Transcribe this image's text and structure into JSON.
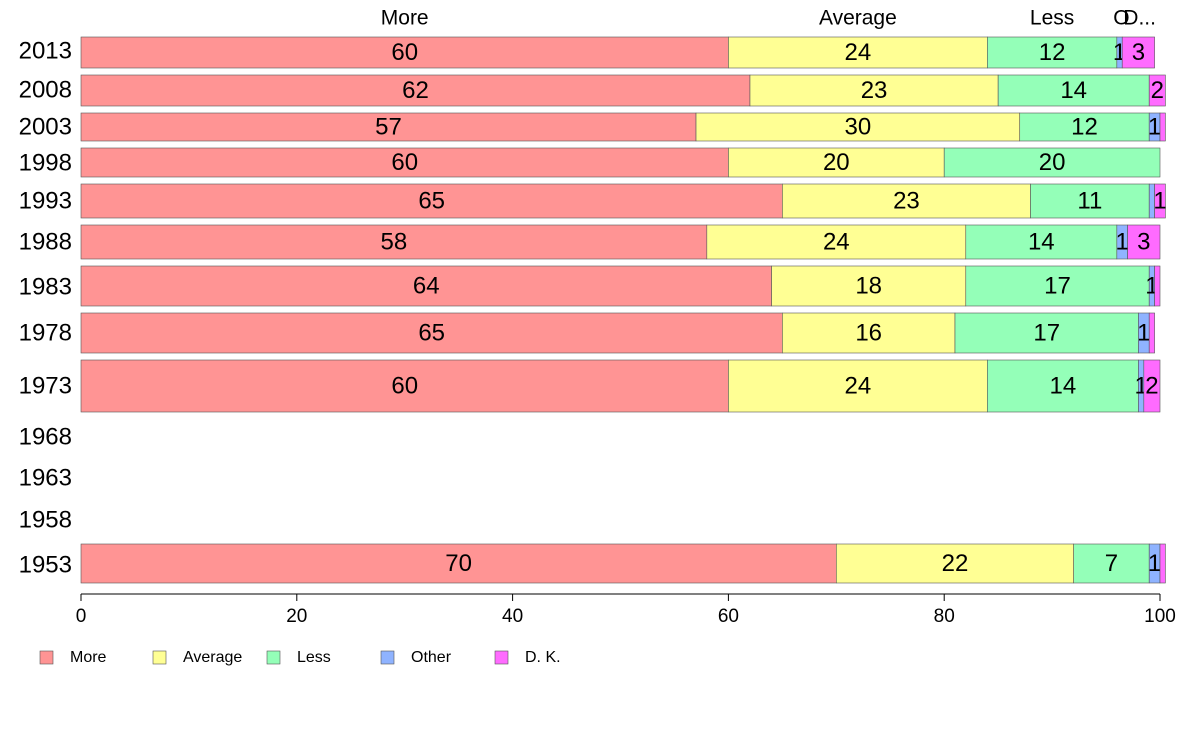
{
  "chart_data": {
    "type": "bar",
    "orientation": "horizontal",
    "stacked": true,
    "categories": [
      "2013",
      "2008",
      "2003",
      "1998",
      "1993",
      "1988",
      "1983",
      "1978",
      "1973",
      "1968",
      "1963",
      "1958",
      "1953"
    ],
    "series": [
      {
        "name": "More",
        "color": "#ff9494",
        "values": [
          60,
          62,
          57,
          60,
          65,
          58,
          64,
          65,
          60,
          null,
          null,
          null,
          70
        ]
      },
      {
        "name": "Average",
        "color": "#ffff94",
        "values": [
          24,
          23,
          30,
          20,
          23,
          24,
          18,
          16,
          24,
          null,
          null,
          null,
          22
        ]
      },
      {
        "name": "Less",
        "color": "#94ffb8",
        "values": [
          12,
          14,
          12,
          20,
          11,
          14,
          17,
          17,
          14,
          null,
          null,
          null,
          7
        ]
      },
      {
        "name": "Other",
        "color": "#8fb3ff",
        "values": [
          0.5,
          0,
          1,
          0,
          0.5,
          1,
          0.5,
          1,
          0.5,
          null,
          null,
          null,
          1
        ]
      },
      {
        "name": "D. K.",
        "color": "#ff6bff",
        "values": [
          3,
          1.5,
          0.5,
          0,
          1,
          3,
          0.5,
          0.5,
          1.5,
          null,
          null,
          null,
          0.5
        ]
      }
    ],
    "top_labels": [
      {
        "series": "More",
        "text": "More"
      },
      {
        "series": "Average",
        "text": "Average"
      },
      {
        "series": "Less",
        "text": "Less"
      },
      {
        "series": "Other",
        "text": "O"
      },
      {
        "series": "D. K.",
        "text": "D..."
      }
    ],
    "segment_labels": [
      [
        "60",
        "24",
        "12",
        "1",
        "3"
      ],
      [
        "62",
        "23",
        "14",
        "",
        "2"
      ],
      [
        "57",
        "30",
        "12",
        "1",
        ""
      ],
      [
        "60",
        "20",
        "20",
        "",
        ""
      ],
      [
        "65",
        "23",
        "11",
        "",
        "1"
      ],
      [
        "58",
        "24",
        "14",
        "1",
        "3"
      ],
      [
        "64",
        "18",
        "17",
        "1",
        ""
      ],
      [
        "65",
        "16",
        "17",
        "1",
        ""
      ],
      [
        "60",
        "24",
        "14",
        "1",
        "2"
      ],
      [
        "",
        "",
        "",
        "",
        ""
      ],
      [
        "",
        "",
        "",
        "",
        ""
      ],
      [
        "",
        "",
        "",
        "",
        ""
      ],
      [
        "70",
        "22",
        "7",
        "1",
        ""
      ]
    ],
    "xlim": [
      0,
      100
    ],
    "x_ticks": [
      "0",
      "20",
      "40",
      "60",
      "80",
      "100"
    ],
    "legend_position": "bottom-left",
    "legend": [
      "More",
      "Average",
      "Less",
      "Other",
      "D. K."
    ],
    "grid": false,
    "title": "",
    "xlabel": "",
    "ylabel": ""
  }
}
